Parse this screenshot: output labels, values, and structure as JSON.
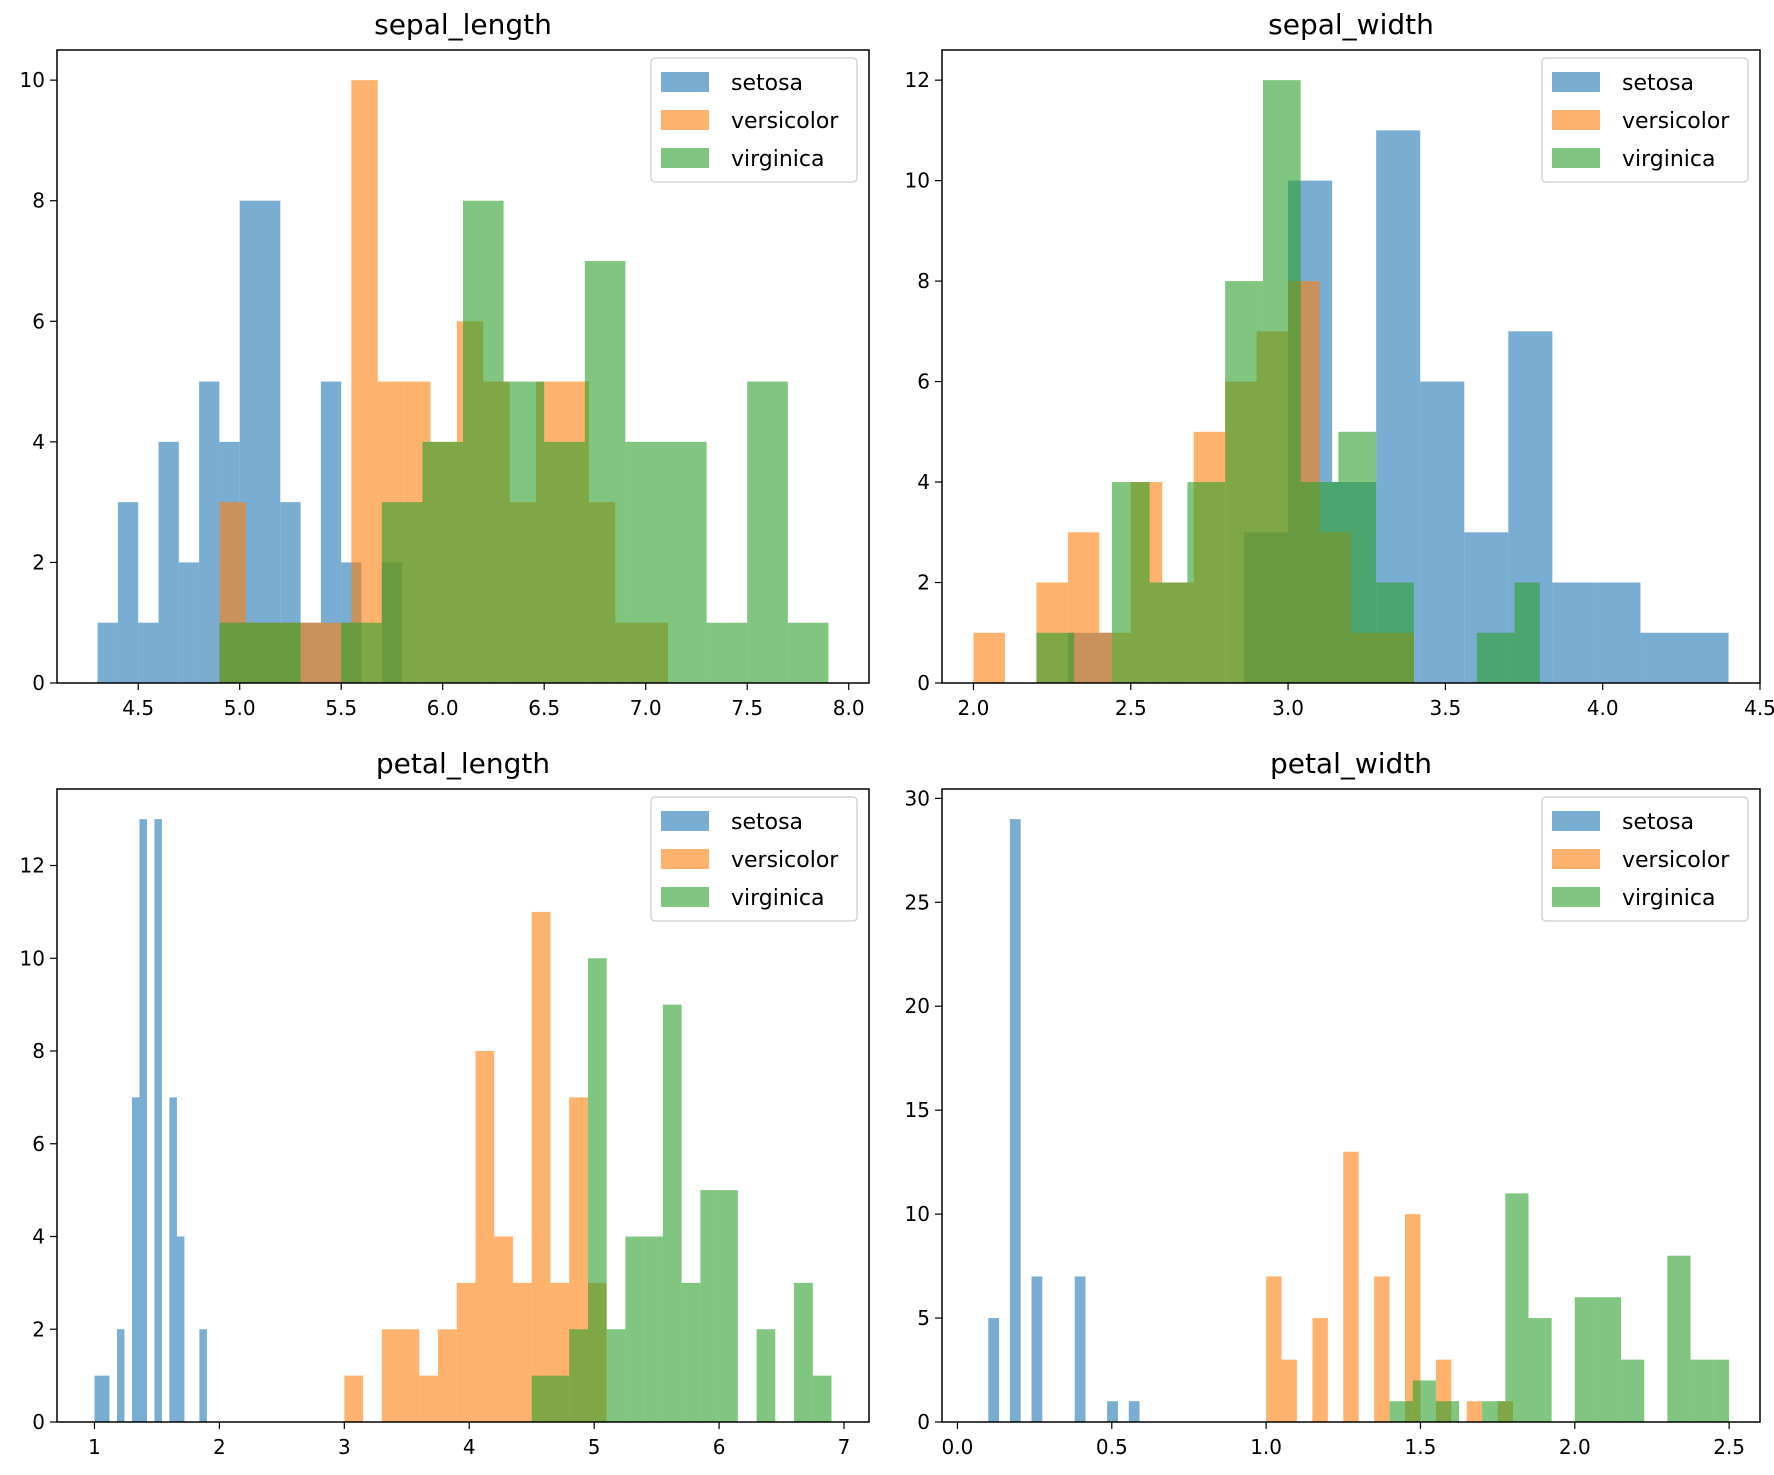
{
  "chart_data": [
    {
      "type": "histogram",
      "title": "sepal_length",
      "xlabel": "",
      "ylabel": "",
      "xlim": [
        4.1,
        8.1
      ],
      "ylim": [
        0,
        10.5
      ],
      "xticks": [
        4.5,
        5.0,
        5.5,
        6.0,
        6.5,
        7.0,
        7.5,
        8.0
      ],
      "xtick_labels": [
        "4.5",
        "5.0",
        "5.5",
        "6.0",
        "6.5",
        "7.0",
        "7.5",
        "8.0"
      ],
      "yticks": [
        0,
        2,
        4,
        6,
        8,
        10
      ],
      "ytick_labels": [
        "0",
        "2",
        "4",
        "6",
        "8",
        "10"
      ],
      "legend": "top-right",
      "series": [
        {
          "name": "setosa",
          "color": "#1f77b4",
          "bins": [
            [
              4.3,
              4.4,
              1
            ],
            [
              4.4,
              4.5,
              3
            ],
            [
              4.5,
              4.6,
              1
            ],
            [
              4.6,
              4.7,
              4
            ],
            [
              4.7,
              4.8,
              2
            ],
            [
              4.8,
              4.9,
              5
            ],
            [
              4.9,
              5.0,
              4
            ],
            [
              5.0,
              5.1,
              8
            ],
            [
              5.1,
              5.2,
              8
            ],
            [
              5.2,
              5.3,
              3
            ],
            [
              5.3,
              5.4,
              1
            ],
            [
              5.4,
              5.5,
              5
            ],
            [
              5.5,
              5.6,
              2
            ],
            [
              5.7,
              5.8,
              2
            ]
          ]
        },
        {
          "name": "versicolor",
          "color": "#ff7f0e",
          "bins": [
            [
              4.9,
              5.03,
              3
            ],
            [
              5.03,
              5.16,
              1
            ],
            [
              5.16,
              5.29,
              1
            ],
            [
              5.29,
              5.42,
              1
            ],
            [
              5.42,
              5.55,
              1
            ],
            [
              5.55,
              5.68,
              10
            ],
            [
              5.68,
              5.81,
              5
            ],
            [
              5.81,
              5.94,
              5
            ],
            [
              5.94,
              6.07,
              4
            ],
            [
              6.07,
              6.2,
              6
            ],
            [
              6.2,
              6.33,
              5
            ],
            [
              6.33,
              6.46,
              3
            ],
            [
              6.46,
              6.59,
              5
            ],
            [
              6.59,
              6.72,
              5
            ],
            [
              6.72,
              6.85,
              3
            ],
            [
              6.85,
              6.98,
              1
            ],
            [
              6.98,
              7.11,
              1
            ]
          ]
        },
        {
          "name": "virginica",
          "color": "#2ca02c",
          "bins": [
            [
              4.9,
              5.1,
              1
            ],
            [
              5.1,
              5.3,
              1
            ],
            [
              5.5,
              5.7,
              1
            ],
            [
              5.7,
              5.9,
              3
            ],
            [
              5.9,
              6.1,
              4
            ],
            [
              6.1,
              6.3,
              8
            ],
            [
              6.3,
              6.5,
              5
            ],
            [
              6.5,
              6.7,
              4
            ],
            [
              6.7,
              6.9,
              7
            ],
            [
              6.9,
              7.1,
              4
            ],
            [
              7.1,
              7.3,
              4
            ],
            [
              7.3,
              7.5,
              1
            ],
            [
              7.5,
              7.7,
              5
            ],
            [
              7.7,
              7.9,
              1
            ]
          ]
        }
      ]
    },
    {
      "type": "histogram",
      "title": "sepal_width",
      "xlabel": "",
      "ylabel": "",
      "xlim": [
        1.9,
        4.5
      ],
      "ylim": [
        0,
        12.6
      ],
      "xticks": [
        2.0,
        2.5,
        3.0,
        3.5,
        4.0,
        4.5
      ],
      "xtick_labels": [
        "2.0",
        "2.5",
        "3.0",
        "3.5",
        "4.0",
        "4.5"
      ],
      "yticks": [
        0,
        2,
        4,
        6,
        8,
        10,
        12
      ],
      "ytick_labels": [
        "0",
        "2",
        "4",
        "6",
        "8",
        "10",
        "12"
      ],
      "legend": "top-right",
      "series": [
        {
          "name": "setosa",
          "color": "#1f77b4",
          "bins": [
            [
              2.3,
              2.44,
              1
            ],
            [
              2.86,
              3.0,
              3
            ],
            [
              3.0,
              3.14,
              10
            ],
            [
              3.14,
              3.28,
              4
            ],
            [
              3.28,
              3.42,
              11
            ],
            [
              3.42,
              3.56,
              6
            ],
            [
              3.56,
              3.7,
              3
            ],
            [
              3.7,
              3.84,
              7
            ],
            [
              3.84,
              3.98,
              2
            ],
            [
              3.98,
              4.12,
              2
            ],
            [
              4.12,
              4.26,
              1
            ],
            [
              4.26,
              4.4,
              1
            ]
          ]
        },
        {
          "name": "versicolor",
          "color": "#ff7f0e",
          "bins": [
            [
              2.0,
              2.1,
              1
            ],
            [
              2.2,
              2.3,
              2
            ],
            [
              2.3,
              2.4,
              3
            ],
            [
              2.4,
              2.5,
              1
            ],
            [
              2.5,
              2.6,
              4
            ],
            [
              2.6,
              2.7,
              2
            ],
            [
              2.7,
              2.8,
              5
            ],
            [
              2.8,
              2.9,
              6
            ],
            [
              2.9,
              3.0,
              7
            ],
            [
              3.0,
              3.1,
              8
            ],
            [
              3.1,
              3.2,
              3
            ],
            [
              3.2,
              3.3,
              1
            ],
            [
              3.3,
              3.4,
              1
            ]
          ]
        },
        {
          "name": "virginica",
          "color": "#2ca02c",
          "bins": [
            [
              2.2,
              2.32,
              1
            ],
            [
              2.44,
              2.56,
              4
            ],
            [
              2.56,
              2.68,
              2
            ],
            [
              2.68,
              2.8,
              4
            ],
            [
              2.8,
              2.92,
              8
            ],
            [
              2.92,
              3.04,
              12
            ],
            [
              3.04,
              3.16,
              4
            ],
            [
              3.16,
              3.28,
              5
            ],
            [
              3.28,
              3.4,
              2
            ],
            [
              3.6,
              3.72,
              1
            ],
            [
              3.72,
              3.8,
              2
            ]
          ]
        }
      ]
    },
    {
      "type": "histogram",
      "title": "petal_length",
      "xlabel": "",
      "ylabel": "",
      "xlim": [
        0.7,
        7.2
      ],
      "ylim": [
        0,
        13.65
      ],
      "xticks": [
        1,
        2,
        3,
        4,
        5,
        6,
        7
      ],
      "xtick_labels": [
        "1",
        "2",
        "3",
        "4",
        "5",
        "6",
        "7"
      ],
      "yticks": [
        0,
        2,
        4,
        6,
        8,
        10,
        12
      ],
      "ytick_labels": [
        "0",
        "2",
        "4",
        "6",
        "8",
        "10",
        "12"
      ],
      "legend": "top-right",
      "series": [
        {
          "name": "setosa",
          "color": "#1f77b4",
          "bins": [
            [
              1.0,
              1.06,
              1
            ],
            [
              1.06,
              1.12,
              1
            ],
            [
              1.18,
              1.24,
              2
            ],
            [
              1.3,
              1.36,
              7
            ],
            [
              1.36,
              1.42,
              13
            ],
            [
              1.48,
              1.54,
              13
            ],
            [
              1.6,
              1.66,
              7
            ],
            [
              1.66,
              1.72,
              4
            ],
            [
              1.84,
              1.9,
              2
            ]
          ]
        },
        {
          "name": "versicolor",
          "color": "#ff7f0e",
          "bins": [
            [
              3.0,
              3.15,
              1
            ],
            [
              3.3,
              3.45,
              2
            ],
            [
              3.45,
              3.6,
              2
            ],
            [
              3.6,
              3.75,
              1
            ],
            [
              3.75,
              3.9,
              2
            ],
            [
              3.9,
              4.05,
              3
            ],
            [
              4.05,
              4.2,
              8
            ],
            [
              4.2,
              4.35,
              4
            ],
            [
              4.35,
              4.5,
              3
            ],
            [
              4.5,
              4.65,
              11
            ],
            [
              4.65,
              4.8,
              3
            ],
            [
              4.8,
              4.95,
              7
            ],
            [
              4.95,
              5.1,
              3
            ]
          ]
        },
        {
          "name": "virginica",
          "color": "#2ca02c",
          "bins": [
            [
              4.5,
              4.65,
              1
            ],
            [
              4.65,
              4.8,
              1
            ],
            [
              4.8,
              4.95,
              2
            ],
            [
              4.95,
              5.1,
              10
            ],
            [
              5.1,
              5.25,
              2
            ],
            [
              5.25,
              5.4,
              4
            ],
            [
              5.4,
              5.55,
              4
            ],
            [
              5.55,
              5.7,
              9
            ],
            [
              5.7,
              5.85,
              3
            ],
            [
              5.85,
              6.0,
              5
            ],
            [
              6.0,
              6.15,
              5
            ],
            [
              6.3,
              6.45,
              2
            ],
            [
              6.6,
              6.75,
              3
            ],
            [
              6.75,
              6.9,
              1
            ]
          ]
        }
      ]
    },
    {
      "type": "histogram",
      "title": "petal_width",
      "xlabel": "",
      "ylabel": "",
      "xlim": [
        -0.05,
        2.6
      ],
      "ylim": [
        0,
        30.45
      ],
      "xticks": [
        0.0,
        0.5,
        1.0,
        1.5,
        2.0,
        2.5
      ],
      "xtick_labels": [
        "0.0",
        "0.5",
        "1.0",
        "1.5",
        "2.0",
        "2.5"
      ],
      "yticks": [
        0,
        5,
        10,
        15,
        20,
        25,
        30
      ],
      "ytick_labels": [
        "0",
        "5",
        "10",
        "15",
        "20",
        "25",
        "30"
      ],
      "legend": "top-right",
      "series": [
        {
          "name": "setosa",
          "color": "#1f77b4",
          "bins": [
            [
              0.1,
              0.135,
              5
            ],
            [
              0.17,
              0.205,
              29
            ],
            [
              0.24,
              0.275,
              7
            ],
            [
              0.38,
              0.415,
              7
            ],
            [
              0.485,
              0.52,
              1
            ],
            [
              0.555,
              0.59,
              1
            ]
          ]
        },
        {
          "name": "versicolor",
          "color": "#ff7f0e",
          "bins": [
            [
              1.0,
              1.05,
              7
            ],
            [
              1.05,
              1.1,
              3
            ],
            [
              1.15,
              1.2,
              5
            ],
            [
              1.25,
              1.3,
              13
            ],
            [
              1.35,
              1.4,
              7
            ],
            [
              1.45,
              1.5,
              10
            ],
            [
              1.55,
              1.6,
              3
            ],
            [
              1.65,
              1.7,
              1
            ],
            [
              1.75,
              1.8,
              1
            ]
          ]
        },
        {
          "name": "virginica",
          "color": "#2ca02c",
          "bins": [
            [
              1.4,
              1.475,
              1
            ],
            [
              1.475,
              1.55,
              2
            ],
            [
              1.55,
              1.625,
              1
            ],
            [
              1.7,
              1.775,
              1
            ],
            [
              1.775,
              1.85,
              11
            ],
            [
              1.85,
              1.925,
              5
            ],
            [
              1.925,
              2.0,
              0
            ],
            [
              2.0,
              2.075,
              6
            ],
            [
              2.075,
              2.15,
              6
            ],
            [
              2.15,
              2.225,
              3
            ],
            [
              2.225,
              2.3,
              0
            ],
            [
              2.3,
              2.375,
              8
            ],
            [
              2.375,
              2.45,
              3
            ],
            [
              2.45,
              2.5,
              3
            ]
          ]
        }
      ]
    }
  ]
}
